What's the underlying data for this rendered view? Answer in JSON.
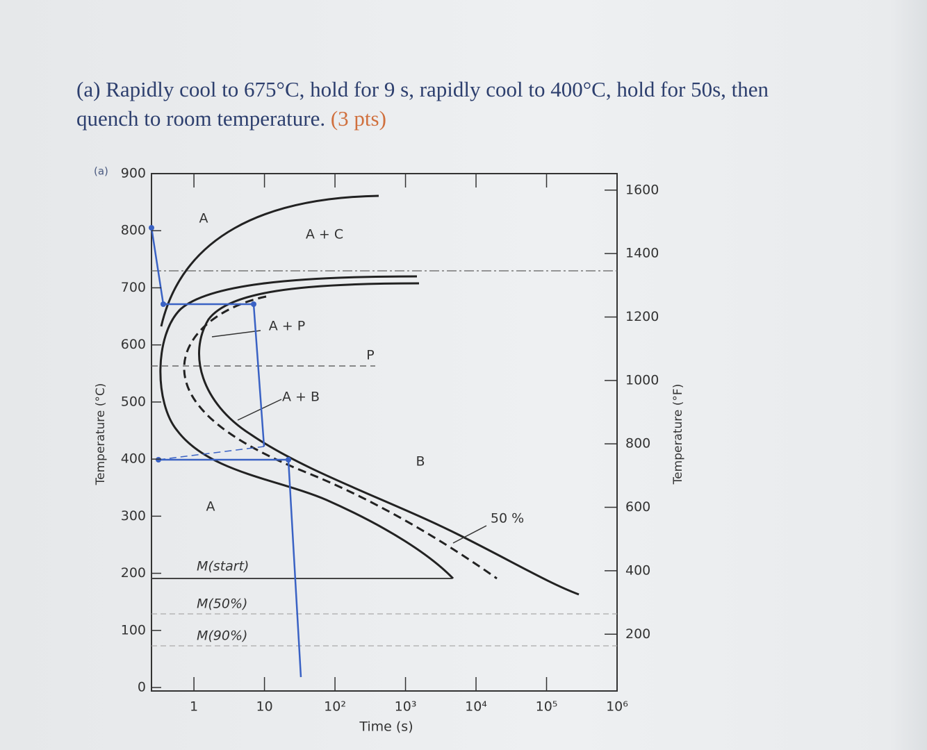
{
  "question": {
    "text": "(a) Rapidly cool to 675°C, hold for 9 s, rapidly cool to 400°C, hold for 50s, then quench to room temperature.",
    "points": "(3 pts)"
  },
  "handwritten_note": "(a)",
  "chart_data": {
    "type": "ttt",
    "xlabel": "Time (s)",
    "ylabel": "Temperature (°C)",
    "y2label": "Temperature (°F)",
    "xscale": "log",
    "xlim": [
      0.25,
      1000000
    ],
    "xticks": [
      {
        "value": 1,
        "label": "1"
      },
      {
        "value": 10,
        "label": "10"
      },
      {
        "value": 100,
        "label": "10²"
      },
      {
        "value": 1000,
        "label": "10³"
      },
      {
        "value": 10000,
        "label": "10⁴"
      },
      {
        "value": 100000,
        "label": "10⁵"
      },
      {
        "value": 1000000,
        "label": "10⁶"
      }
    ],
    "ylim": [
      0,
      900
    ],
    "yticks": [
      0,
      100,
      200,
      300,
      400,
      500,
      600,
      700,
      800,
      900
    ],
    "y2lim": [
      32,
      1652
    ],
    "y2ticks": [
      200,
      400,
      600,
      800,
      1000,
      1200,
      1400,
      1600
    ],
    "region_labels": [
      "A",
      "A + C",
      "A + P",
      "P",
      "A + B",
      "B",
      "A",
      "50 %"
    ],
    "martensite_labels": [
      "M(start)",
      "M(50%)",
      "M(90%)"
    ]
  }
}
